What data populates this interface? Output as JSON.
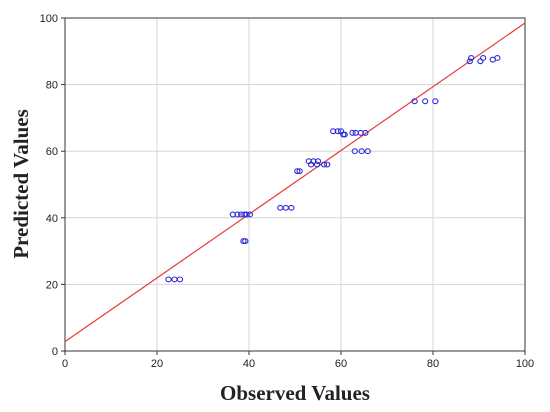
{
  "chart_data": {
    "type": "scatter",
    "xlabel": "Observed Values",
    "ylabel": "Predicted Values",
    "xlim": [
      0,
      100
    ],
    "ylim": [
      0,
      100
    ],
    "xticks": [
      0,
      20,
      40,
      60,
      80,
      100
    ],
    "yticks": [
      0,
      20,
      40,
      60,
      80,
      100
    ],
    "grid": true,
    "marker_color": "#2b2bd6",
    "line_color": "#e63a3a",
    "series": [
      {
        "type": "scatter",
        "points": [
          [
            22.5,
            21.5
          ],
          [
            23.8,
            21.5
          ],
          [
            25.0,
            21.5
          ],
          [
            36.5,
            41.0
          ],
          [
            37.5,
            41.0
          ],
          [
            38.3,
            41.0
          ],
          [
            39.0,
            41.0
          ],
          [
            39.5,
            41.0
          ],
          [
            40.2,
            41.0
          ],
          [
            38.8,
            33.0
          ],
          [
            39.2,
            33.0
          ],
          [
            46.8,
            43.0
          ],
          [
            48.0,
            43.0
          ],
          [
            49.2,
            43.0
          ],
          [
            50.5,
            54.0
          ],
          [
            51.0,
            54.0
          ],
          [
            53.0,
            57.0
          ],
          [
            54.0,
            57.0
          ],
          [
            55.0,
            57.0
          ],
          [
            53.5,
            56.0
          ],
          [
            54.8,
            56.0
          ],
          [
            56.3,
            56.0
          ],
          [
            57.0,
            56.0
          ],
          [
            58.3,
            66.0
          ],
          [
            59.3,
            66.0
          ],
          [
            60.0,
            66.0
          ],
          [
            60.5,
            65.0
          ],
          [
            60.8,
            65.0
          ],
          [
            62.5,
            65.5
          ],
          [
            63.2,
            65.5
          ],
          [
            64.3,
            65.5
          ],
          [
            65.3,
            65.5
          ],
          [
            63.0,
            60.0
          ],
          [
            64.5,
            60.0
          ],
          [
            65.8,
            60.0
          ],
          [
            76.0,
            75.0
          ],
          [
            78.3,
            75.0
          ],
          [
            80.5,
            75.0
          ],
          [
            88.0,
            87.0
          ],
          [
            88.3,
            88.0
          ],
          [
            90.3,
            87.0
          ],
          [
            90.9,
            88.0
          ],
          [
            93.0,
            87.5
          ],
          [
            94.0,
            88.0
          ]
        ]
      },
      {
        "type": "line",
        "x": [
          0,
          100
        ],
        "y": [
          2.8,
          98.5
        ]
      }
    ]
  }
}
